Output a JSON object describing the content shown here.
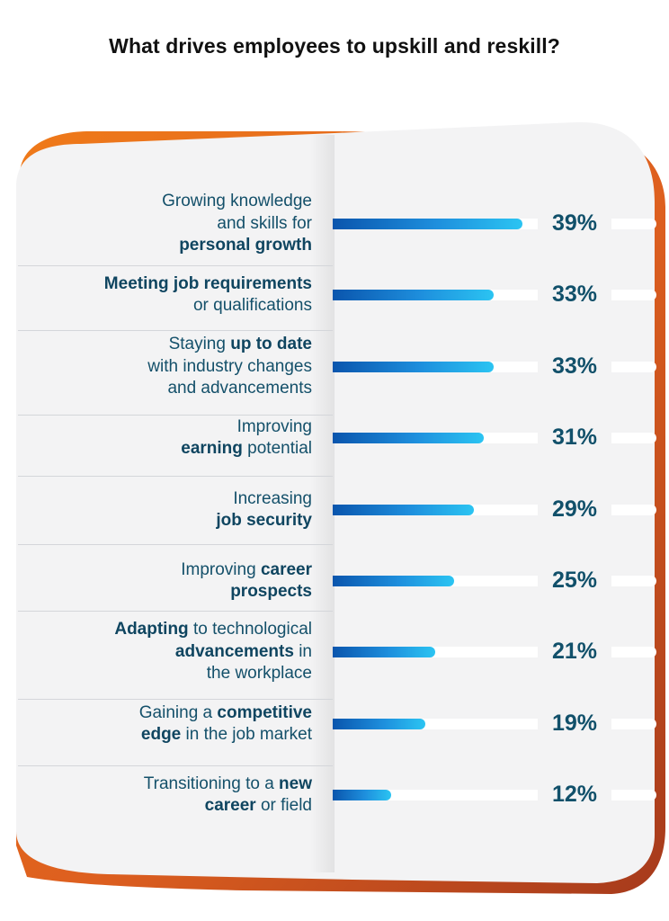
{
  "title": "What drives employees to upskill and reskill?",
  "colors": {
    "frame": "#e8711e",
    "card": "#f3f3f4",
    "label_text": "#14506a",
    "value_text": "#11506a",
    "bar_start": "#0a55ad",
    "bar_end": "#2bc4f2"
  },
  "chart_data": {
    "type": "bar",
    "orientation": "horizontal",
    "title": "What drives employees to upskill and reskill?",
    "value_unit": "%",
    "xlim": [
      0,
      68
    ],
    "grid": false,
    "legend": "none",
    "categories": [
      "Growing knowledge and skills for personal growth",
      "Meeting job requirements or qualifications",
      "Staying up to date with industry changes and advancements",
      "Improving earning potential",
      "Increasing job security",
      "Improving career prospects",
      "Adapting to technological advancements in the workplace",
      "Gaining a competitive edge in the job market",
      "Transitioning to a new career or field"
    ],
    "values": [
      39,
      33,
      33,
      31,
      29,
      25,
      21,
      19,
      12
    ],
    "value_labels": [
      "39%",
      "33%",
      "33%",
      "31%",
      "29%",
      "25%",
      "21%",
      "19%",
      "12%"
    ],
    "label_segments": [
      [
        [
          {
            "t": "Growing knowledge",
            "b": false
          }
        ],
        [
          {
            "t": "and skills for",
            "b": false
          }
        ],
        [
          {
            "t": "personal growth",
            "b": true
          }
        ]
      ],
      [
        [
          {
            "t": "Meeting job requirements",
            "b": true
          }
        ],
        [
          {
            "t": "or qualifications",
            "b": false
          }
        ]
      ],
      [
        [
          {
            "t": "Staying ",
            "b": false
          },
          {
            "t": "up to date",
            "b": true
          }
        ],
        [
          {
            "t": "with industry changes",
            "b": false
          }
        ],
        [
          {
            "t": "and advancements",
            "b": false
          }
        ]
      ],
      [
        [
          {
            "t": "Improving",
            "b": false
          }
        ],
        [
          {
            "t": "earning",
            "b": true
          },
          {
            "t": " potential",
            "b": false
          }
        ]
      ],
      [
        [
          {
            "t": "Increasing",
            "b": false
          }
        ],
        [
          {
            "t": "job security",
            "b": true
          }
        ]
      ],
      [
        [
          {
            "t": "Improving ",
            "b": false
          },
          {
            "t": "career",
            "b": true
          }
        ],
        [
          {
            "t": "prospects",
            "b": true
          }
        ]
      ],
      [
        [
          {
            "t": "Adapting",
            "b": true
          },
          {
            "t": " to technological",
            "b": false
          }
        ],
        [
          {
            "t": "advancements",
            "b": true
          },
          {
            "t": " in",
            "b": false
          }
        ],
        [
          {
            "t": "the workplace",
            "b": false
          }
        ]
      ],
      [
        [
          {
            "t": "Gaining a ",
            "b": false
          },
          {
            "t": "competitive",
            "b": true
          }
        ],
        [
          {
            "t": "edge",
            "b": true
          },
          {
            "t": " in the job market",
            "b": false
          }
        ]
      ],
      [
        [
          {
            "t": "Transitioning to a ",
            "b": false
          },
          {
            "t": "new",
            "b": true
          }
        ],
        [
          {
            "t": "career",
            "b": true
          },
          {
            "t": " or field",
            "b": false
          }
        ]
      ]
    ]
  }
}
